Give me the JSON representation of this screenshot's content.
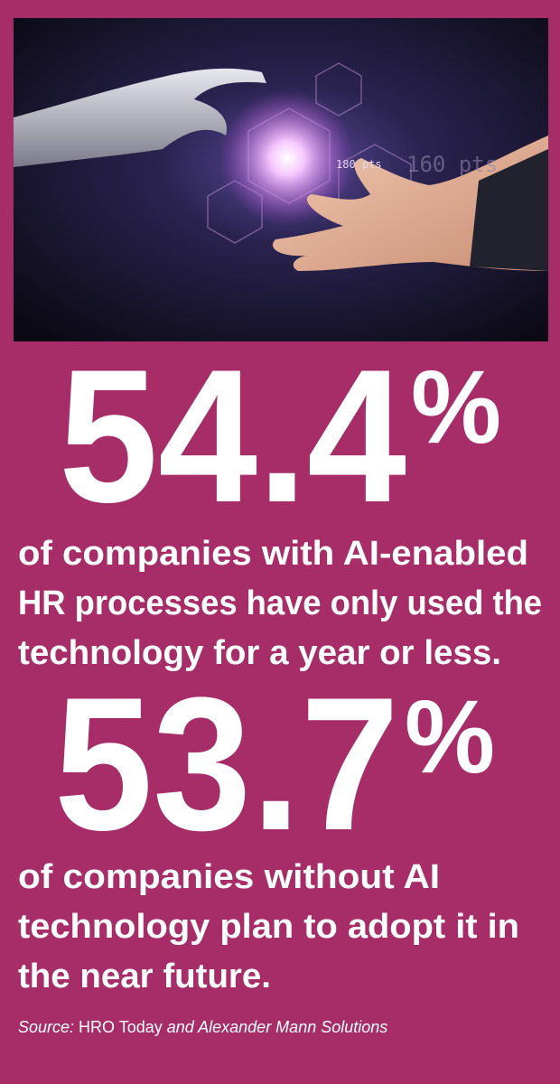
{
  "stats": [
    {
      "number": "54.4",
      "unit": "%",
      "lines": [
        "of companies with AI-enabled",
        "HR processes have only used the",
        "technology for a year or less."
      ]
    },
    {
      "number": "53.7",
      "unit": "%",
      "lines": [
        "of companies without AI",
        "technology plan to adopt it in",
        "the near future."
      ]
    }
  ],
  "image": {
    "overlay_text": [
      "180 pts",
      "160 pts"
    ]
  },
  "source": [
    "Source:",
    "HRO Today",
    "and Alexander Mann Solutions"
  ]
}
